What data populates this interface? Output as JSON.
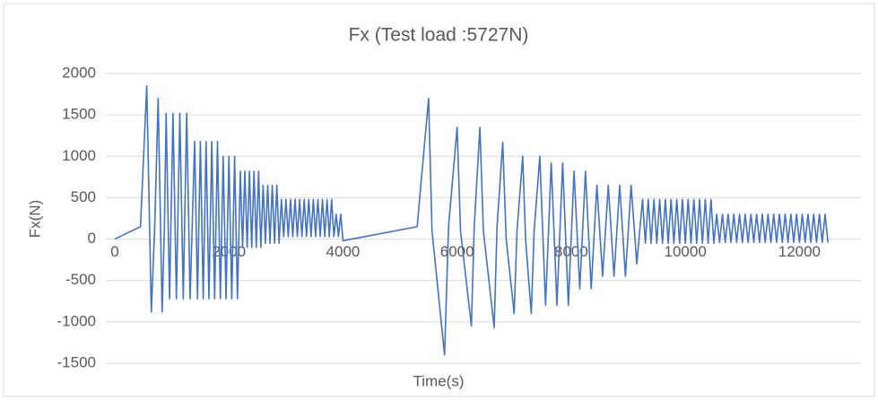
{
  "chart_data": {
    "type": "line",
    "title": "Fx  (Test load :5727N)",
    "x_label": "Time(s)",
    "y_label": "Fx(N)",
    "xlim": [
      0,
      13000
    ],
    "xticks": [
      0,
      2000,
      4000,
      6000,
      8000,
      10000,
      12000
    ],
    "ylim": [
      -1500,
      2000
    ],
    "yticks": [
      -1500,
      -1000,
      -500,
      0,
      500,
      1000,
      1500,
      2000
    ],
    "grid": true,
    "series": [
      {
        "name": "Fx",
        "color": "#4472c4",
        "x": [
          0,
          450,
          560,
          640,
          700,
          760,
          830,
          870,
          900,
          960,
          1020,
          1080,
          1140,
          1200,
          1260,
          1320,
          1400,
          1450,
          1500,
          1550,
          1600,
          1650,
          1700,
          1750,
          1800,
          1850,
          1900,
          1950,
          2000,
          2050,
          2100,
          2150,
          2200,
          2240,
          2280,
          2320,
          2360,
          2400,
          2440,
          2480,
          2520,
          2560,
          2600,
          2640,
          2680,
          2720,
          2760,
          2800,
          2840,
          2880,
          2920,
          2960,
          3000,
          3040,
          3080,
          3120,
          3160,
          3200,
          3240,
          3280,
          3320,
          3360,
          3400,
          3440,
          3480,
          3520,
          3560,
          3600,
          3640,
          3680,
          3720,
          3760,
          3800,
          3840,
          3880,
          3920,
          3960,
          4000,
          5300,
          5500,
          5560,
          5780,
          5850,
          6000,
          6060,
          6250,
          6300,
          6400,
          6460,
          6650,
          6700,
          6800,
          6860,
          7000,
          7050,
          7150,
          7200,
          7300,
          7350,
          7450,
          7550,
          7650,
          7750,
          7850,
          7950,
          8050,
          8150,
          8250,
          8350,
          8450,
          8550,
          8650,
          8750,
          8850,
          8950,
          9050,
          9150,
          9250,
          9300,
          9350,
          9400,
          9450,
          9500,
          9550,
          9600,
          9650,
          9700,
          9750,
          9800,
          9850,
          9900,
          9950,
          10000,
          10050,
          10100,
          10150,
          10200,
          10250,
          10300,
          10350,
          10400,
          10450,
          10500,
          10550,
          10600,
          10650,
          10700,
          10750,
          10800,
          10850,
          10900,
          10950,
          11000,
          11050,
          11100,
          11150,
          11200,
          11250,
          11300,
          11350,
          11400,
          11450,
          11500,
          11550,
          11600,
          11650,
          11700,
          11750,
          11800,
          11850,
          11900,
          11950,
          12000,
          12050,
          12100,
          12150,
          12200,
          12250,
          12300,
          12350,
          12400,
          12450,
          12500
        ],
        "values": [
          0,
          150,
          1850,
          -880,
          150,
          1700,
          -880,
          150,
          1520,
          -720,
          1520,
          -720,
          1520,
          -720,
          1520,
          -720,
          1180,
          -720,
          1180,
          -720,
          1180,
          -720,
          1180,
          -720,
          1180,
          -720,
          1000,
          -720,
          1000,
          -720,
          1000,
          -720,
          820,
          -100,
          820,
          -100,
          820,
          -100,
          820,
          -100,
          820,
          -100,
          650,
          -50,
          650,
          -50,
          650,
          -50,
          650,
          -50,
          480,
          30,
          480,
          30,
          480,
          30,
          480,
          30,
          480,
          30,
          480,
          30,
          480,
          30,
          480,
          30,
          480,
          30,
          480,
          30,
          480,
          30,
          480,
          30,
          300,
          30,
          300,
          -20,
          150,
          1700,
          100,
          -1400,
          150,
          1350,
          100,
          -1050,
          150,
          1350,
          100,
          -1070,
          150,
          1170,
          0,
          -900,
          100,
          1000,
          0,
          -900,
          100,
          1000,
          -800,
          920,
          -800,
          920,
          -800,
          820,
          -600,
          820,
          -600,
          650,
          -450,
          650,
          -450,
          650,
          -450,
          650,
          -300,
          480,
          -50,
          480,
          -50,
          480,
          -50,
          480,
          -50,
          480,
          -50,
          480,
          -50,
          480,
          -50,
          480,
          -50,
          480,
          -50,
          480,
          -50,
          480,
          -50,
          480,
          -50,
          480,
          -50,
          300,
          -40,
          300,
          -40,
          300,
          -40,
          300,
          -40,
          300,
          -40,
          300,
          -40,
          300,
          -40,
          300,
          -40,
          300,
          -40,
          300,
          -40,
          300,
          -40,
          300,
          -40,
          300,
          -40,
          300,
          -40,
          300,
          -40,
          300,
          -40,
          300,
          -40,
          300,
          -40,
          300,
          -40,
          300,
          -40
        ]
      }
    ]
  }
}
